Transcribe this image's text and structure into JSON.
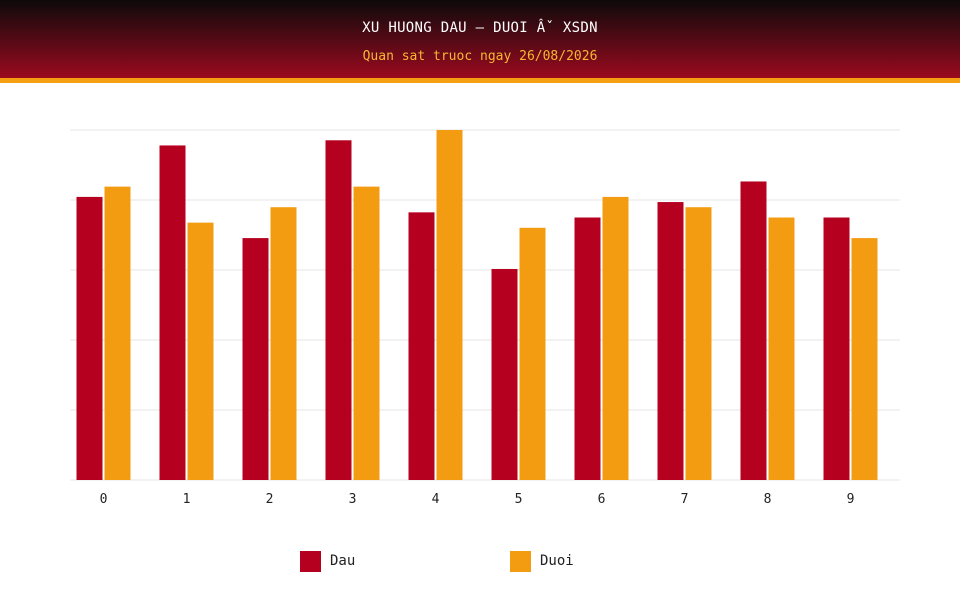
{
  "header": {
    "title": "XU HUONG DAU – DUOI Âˇ XSDN",
    "subtitle": "Quan sat truoc ngay 26/08/2026"
  },
  "colors": {
    "dau": "#b5001f",
    "duoi": "#f39c12",
    "grid": "#e6e6e6"
  },
  "chart_data": {
    "type": "bar",
    "categories": [
      "0",
      "1",
      "2",
      "3",
      "4",
      "5",
      "6",
      "7",
      "8",
      "9"
    ],
    "ylim": [
      0,
      34
    ],
    "grid": true,
    "legend_position": "bottom",
    "series": [
      {
        "name": "Dau",
        "values": [
          27.5,
          32.5,
          23.5,
          33,
          26,
          20.5,
          25.5,
          27,
          29,
          25.5
        ]
      },
      {
        "name": "Duoi",
        "values": [
          28.5,
          25,
          26.5,
          28.5,
          34,
          24.5,
          27.5,
          26.5,
          25.5,
          23.5
        ]
      }
    ]
  }
}
